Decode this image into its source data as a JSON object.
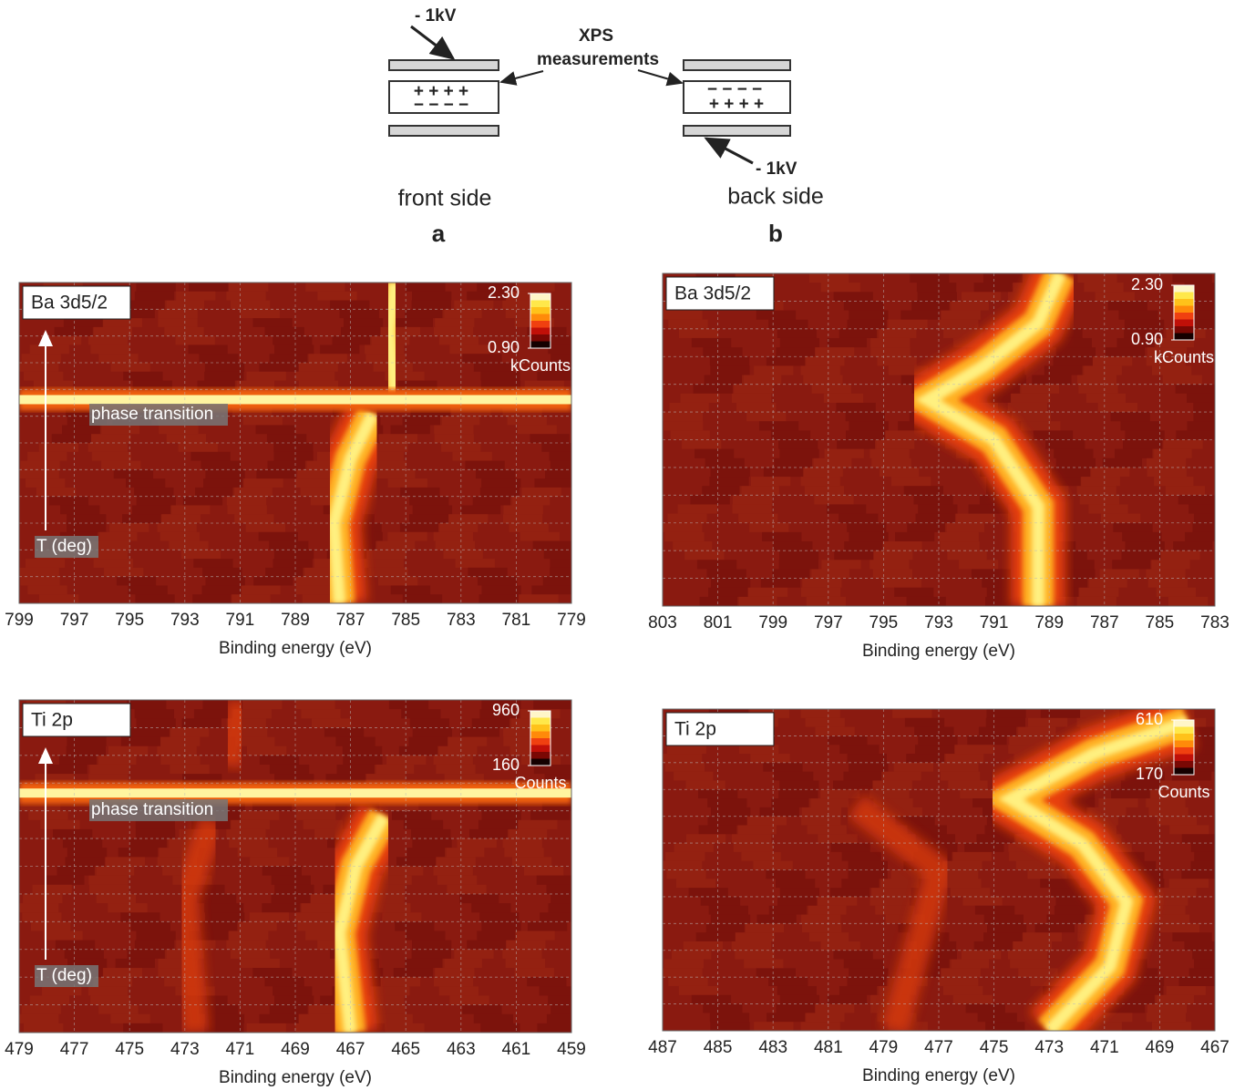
{
  "diagram": {
    "voltage_a": "- 1kV",
    "voltage_b": "- 1kV",
    "xps": "XPS",
    "measurements": "measurements",
    "front_plus": "+ + + +",
    "front_minus": "− − − −",
    "back_minus": "− − − −",
    "back_plus": "+ + + +",
    "front": "front side",
    "back": "back side",
    "label_a": "a",
    "label_b": "b"
  },
  "chart_data": [
    {
      "type": "heatmap",
      "title": "Ba 3d5/2",
      "x_label": "Binding energy (eV)",
      "xlim": [
        799,
        779
      ],
      "xticks": [
        799,
        797,
        795,
        793,
        791,
        789,
        787,
        785,
        783,
        781,
        779
      ],
      "colorbar": {
        "ticks": [
          {
            "value": 2.3,
            "label": "2.30"
          },
          {
            "value": 0.9,
            "label": "0.90"
          }
        ],
        "label": "kCounts"
      },
      "annotations": [
        "phase transition",
        "T (deg)"
      ],
      "grid": true
    },
    {
      "type": "heatmap",
      "title": "Ba 3d5/2",
      "x_label": "Binding energy (eV)",
      "xlim": [
        803,
        783
      ],
      "xticks": [
        803,
        801,
        799,
        797,
        795,
        793,
        791,
        789,
        787,
        785,
        783
      ],
      "colorbar": {
        "ticks": [
          {
            "value": 2.3,
            "label": "2.30"
          },
          {
            "value": 0.9,
            "label": "0.90"
          }
        ],
        "label": "kCounts"
      },
      "grid": true
    },
    {
      "type": "heatmap",
      "title": "Ti 2p",
      "x_label": "Binding energy (eV)",
      "xlim": [
        479,
        459
      ],
      "xticks": [
        479,
        477,
        475,
        473,
        471,
        469,
        467,
        465,
        463,
        461,
        459
      ],
      "colorbar": {
        "ticks": [
          960,
          160
        ],
        "label": "Counts"
      },
      "annotations": [
        "phase transition",
        "T (deg)"
      ],
      "grid": true
    },
    {
      "type": "heatmap",
      "title": "Ti 2p",
      "x_label": "Binding energy (eV)",
      "xlim": [
        487,
        467
      ],
      "xticks": [
        487,
        485,
        483,
        481,
        479,
        477,
        475,
        473,
        471,
        469,
        467
      ],
      "colorbar": {
        "ticks": [
          610,
          170
        ],
        "label": "Counts"
      },
      "grid": true
    }
  ]
}
